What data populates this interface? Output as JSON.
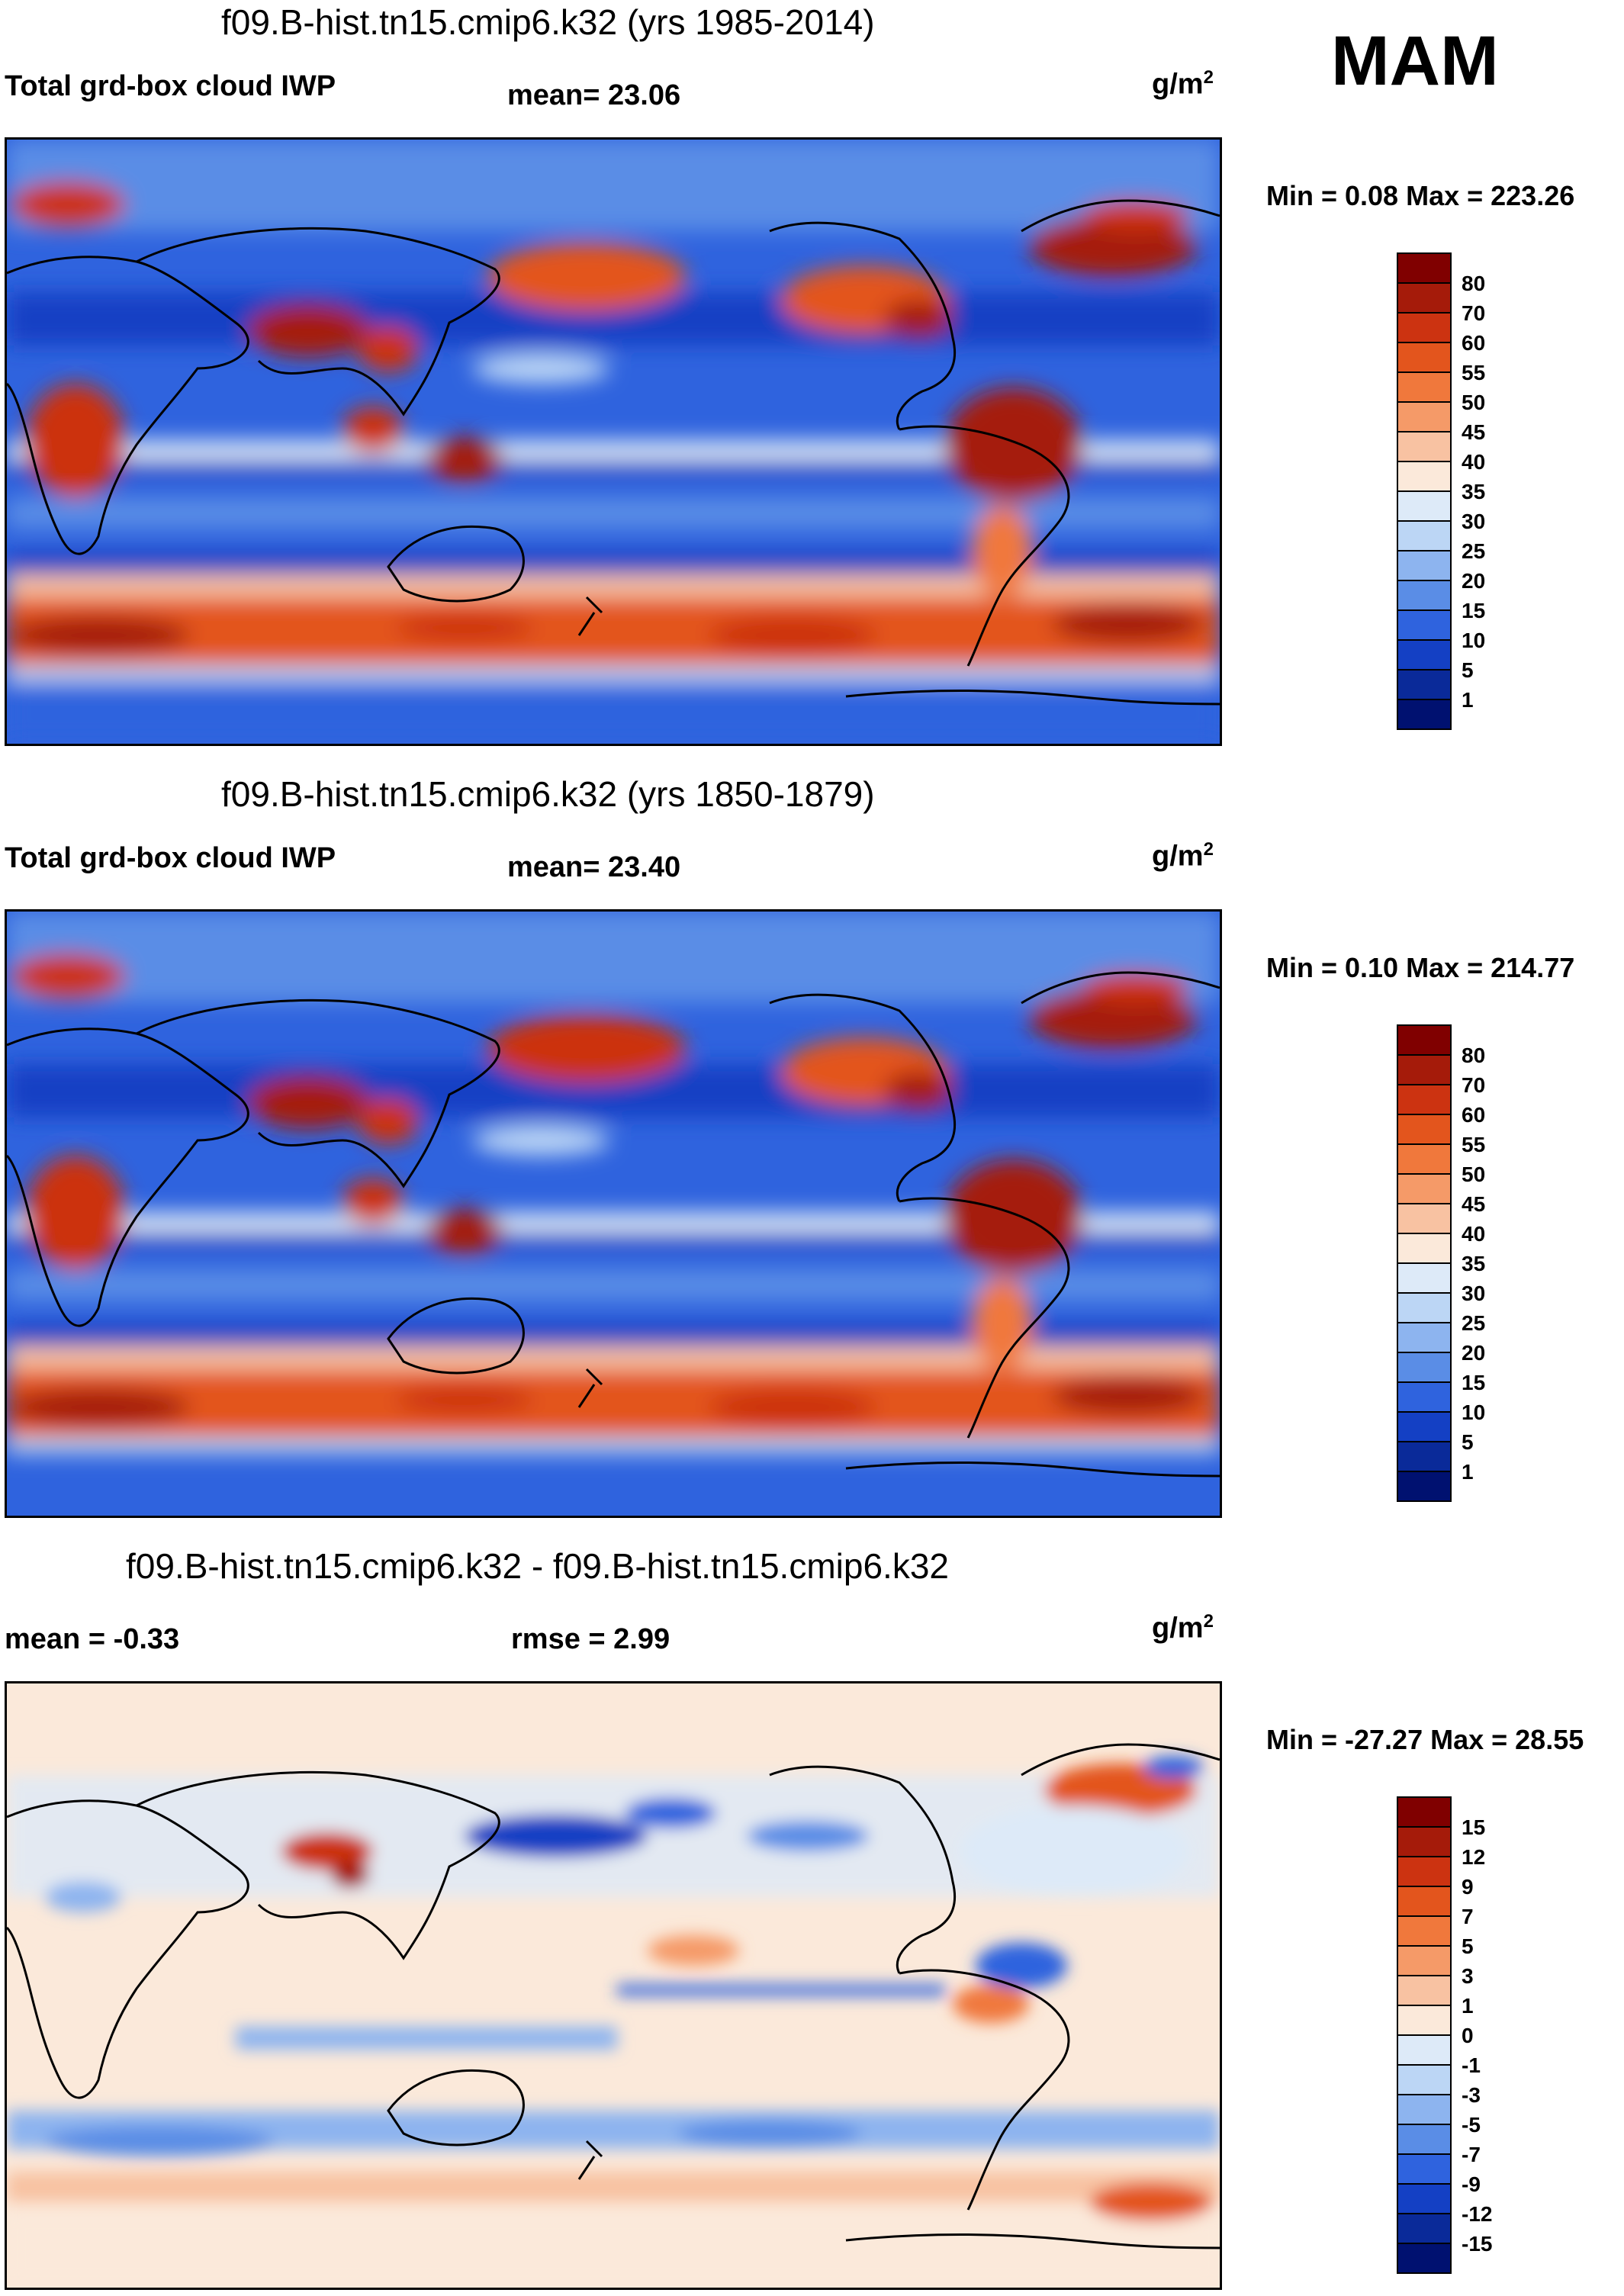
{
  "season": "MAM",
  "unit_base": "g/m",
  "unit_exp": "2",
  "panels": [
    {
      "title": "f09.B-hist.tn15.cmip6.k32 (yrs 1985-2014)",
      "left_label": "Total grd-box cloud IWP",
      "center_label": "mean=  23.06",
      "minmax": "Min =   0.08 Max = 223.26",
      "colorbar_labels": [
        "80",
        "70",
        "60",
        "55",
        "50",
        "45",
        "40",
        "35",
        "30",
        "25",
        "20",
        "15",
        "10",
        "5",
        "1"
      ],
      "colorbar_colors": [
        "#800000",
        "#a51b0a",
        "#cc3311",
        "#e3551d",
        "#f0783c",
        "#f59a68",
        "#f8c2a2",
        "#fbe9da",
        "#ddeaf8",
        "#bcd6f5",
        "#8db4ef",
        "#5a8de6",
        "#2f63de",
        "#1440c4",
        "#0a2a99",
        "#001170"
      ]
    },
    {
      "title": "f09.B-hist.tn15.cmip6.k32 (yrs 1850-1879)",
      "left_label": "Total grd-box cloud IWP",
      "center_label": "mean=  23.40",
      "minmax": "Min =   0.10 Max = 214.77",
      "colorbar_labels": [
        "80",
        "70",
        "60",
        "55",
        "50",
        "45",
        "40",
        "35",
        "30",
        "25",
        "20",
        "15",
        "10",
        "5",
        "1"
      ],
      "colorbar_colors": [
        "#800000",
        "#a51b0a",
        "#cc3311",
        "#e3551d",
        "#f0783c",
        "#f59a68",
        "#f8c2a2",
        "#fbe9da",
        "#ddeaf8",
        "#bcd6f5",
        "#8db4ef",
        "#5a8de6",
        "#2f63de",
        "#1440c4",
        "#0a2a99",
        "#001170"
      ]
    },
    {
      "title": "f09.B-hist.tn15.cmip6.k32 - f09.B-hist.tn15.cmip6.k32",
      "left_label": "mean =  -0.33",
      "center_label": "rmse =    2.99",
      "minmax": "Min = -27.27 Max =  28.55",
      "colorbar_labels": [
        "15",
        "12",
        "9",
        "7",
        "5",
        "3",
        "1",
        "0",
        "-1",
        "-3",
        "-5",
        "-7",
        "-9",
        "-12",
        "-15"
      ],
      "colorbar_colors": [
        "#800000",
        "#a51b0a",
        "#cc3311",
        "#e3551d",
        "#f0783c",
        "#f59a68",
        "#f8c2a2",
        "#fbe9da",
        "#ddeaf8",
        "#bcd6f5",
        "#8db4ef",
        "#5a8de6",
        "#2f63de",
        "#1440c4",
        "#0a2a99",
        "#001170"
      ]
    }
  ]
}
